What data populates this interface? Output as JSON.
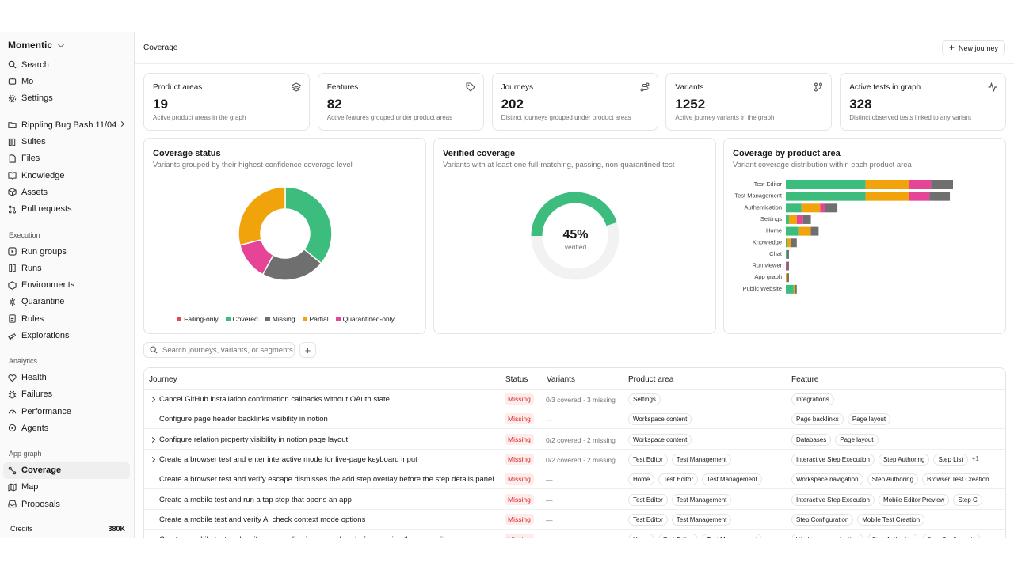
{
  "brand": "Momentic",
  "nav_top": [
    {
      "label": "Search",
      "icon": "search-icon"
    },
    {
      "label": "Mo",
      "icon": "mo-icon"
    },
    {
      "label": "Settings",
      "icon": "gear-icon"
    }
  ],
  "project": {
    "label": "Rippling Bug Bash 11/04",
    "icon": "folder-icon"
  },
  "nav_project": [
    {
      "label": "Suites",
      "icon": "suites-icon"
    },
    {
      "label": "Files",
      "icon": "file-icon"
    },
    {
      "label": "Knowledge",
      "icon": "book-icon"
    },
    {
      "label": "Assets",
      "icon": "box-icon"
    },
    {
      "label": "Pull requests",
      "icon": "pull-request-icon"
    }
  ],
  "section_execution": "Execution",
  "nav_execution": [
    {
      "label": "Run groups",
      "icon": "run-groups-icon"
    },
    {
      "label": "Runs",
      "icon": "runs-icon"
    },
    {
      "label": "Environments",
      "icon": "environment-icon"
    },
    {
      "label": "Quarantine",
      "icon": "quarantine-icon"
    },
    {
      "label": "Rules",
      "icon": "rules-icon"
    },
    {
      "label": "Explorations",
      "icon": "telescope-icon"
    }
  ],
  "section_analytics": "Analytics",
  "nav_analytics": [
    {
      "label": "Health",
      "icon": "health-icon"
    },
    {
      "label": "Failures",
      "icon": "bug-icon"
    },
    {
      "label": "Performance",
      "icon": "gauge-icon"
    },
    {
      "label": "Agents",
      "icon": "agent-icon"
    }
  ],
  "section_app_graph": "App graph",
  "nav_app_graph": [
    {
      "label": "Coverage",
      "icon": "coverage-icon",
      "active": true
    },
    {
      "label": "Map",
      "icon": "map-icon"
    },
    {
      "label": "Proposals",
      "icon": "inbox-icon"
    }
  ],
  "credits": {
    "label": "Credits",
    "value": "380K"
  },
  "header": {
    "title": "Coverage",
    "new_button": "New journey"
  },
  "stats": [
    {
      "label": "Product areas",
      "value": "19",
      "desc": "Active product areas in the graph",
      "icon": "layers-icon"
    },
    {
      "label": "Features",
      "value": "82",
      "desc": "Active features grouped under product areas",
      "icon": "tag-icon"
    },
    {
      "label": "Journeys",
      "value": "202",
      "desc": "Distinct journeys grouped under product areas",
      "icon": "route-icon"
    },
    {
      "label": "Variants",
      "value": "1252",
      "desc": "Active journey variants in the graph",
      "icon": "branch-icon"
    },
    {
      "label": "Active tests in graph",
      "value": "328",
      "desc": "Distinct observed tests linked to any variant",
      "icon": "activity-icon"
    }
  ],
  "coverage_status": {
    "title": "Coverage status",
    "subtitle": "Variants grouped by their highest-confidence coverage level"
  },
  "verified": {
    "title": "Verified coverage",
    "subtitle": "Variants with at least one full-matching, passing, non-quarantined test",
    "value": "45%",
    "label": "verified"
  },
  "by_area": {
    "title": "Coverage by product area",
    "subtitle": "Variant coverage distribution within each product area"
  },
  "colors": {
    "failing": "#e5484d",
    "covered": "#3dbd7d",
    "missing": "#6f6f6f",
    "partial": "#f0a30a",
    "quarantined": "#e64497"
  },
  "chart_data": [
    {
      "type": "pie",
      "legend": [
        "Failing-only",
        "Covered",
        "Missing",
        "Partial",
        "Quarantined-only"
      ],
      "slices": [
        {
          "name": "Covered",
          "value": 36
        },
        {
          "name": "Missing",
          "value": 22
        },
        {
          "name": "Quarantined-only",
          "value": 13
        },
        {
          "name": "Partial",
          "value": 29
        },
        {
          "name": "Failing-only",
          "value": 0
        }
      ]
    },
    {
      "type": "pie",
      "slices": [
        {
          "name": "verified",
          "value": 45
        },
        {
          "name": "unverified",
          "value": 55
        }
      ]
    },
    {
      "type": "bar",
      "orientation": "horizontal",
      "stacked": true,
      "categories": [
        "Test Editor",
        "Test Management",
        "Authentication",
        "Settings",
        "Home",
        "Knowledge",
        "Chat",
        "Run viewer",
        "App graph",
        "Public Website"
      ],
      "series": [
        {
          "name": "Covered",
          "values": [
            51,
            51,
            10,
            2,
            8,
            1,
            1,
            0,
            0,
            5
          ]
        },
        {
          "name": "Partial",
          "values": [
            28,
            28,
            12,
            5,
            8,
            2,
            0,
            0,
            1,
            1
          ]
        },
        {
          "name": "Quarantined-only",
          "values": [
            14,
            13,
            3,
            4,
            0,
            0,
            0,
            1,
            0,
            0
          ]
        },
        {
          "name": "Missing",
          "values": [
            14,
            13,
            8,
            5,
            5,
            4,
            1,
            1,
            1,
            1
          ]
        }
      ]
    }
  ],
  "search": {
    "placeholder": "Search journeys, variants, or segments"
  },
  "table": {
    "headers": [
      "Journey",
      "Status",
      "Variants",
      "Product area",
      "Feature"
    ],
    "rows": [
      {
        "journey": "Cancel GitHub installation confirmation callbacks without OAuth state",
        "expandable": true,
        "status": "Missing",
        "variants": "0/3 covered · 3 missing",
        "areas": [
          "Settings"
        ],
        "features": [
          "Integrations"
        ],
        "more": ""
      },
      {
        "journey": "Configure page header backlinks visibility in notion",
        "expandable": false,
        "status": "Missing",
        "variants": "—",
        "areas": [
          "Workspace content"
        ],
        "features": [
          "Page backlinks",
          "Page layout"
        ],
        "more": ""
      },
      {
        "journey": "Configure relation property visibility in notion page layout",
        "expandable": true,
        "status": "Missing",
        "variants": "0/2 covered · 2 missing",
        "areas": [
          "Workspace content"
        ],
        "features": [
          "Databases",
          "Page layout"
        ],
        "more": ""
      },
      {
        "journey": "Create a browser test and enter interactive mode for live-page keyboard input",
        "expandable": true,
        "status": "Missing",
        "variants": "0/2 covered · 2 missing",
        "areas": [
          "Test Editor",
          "Test Management"
        ],
        "features": [
          "Interactive Step Execution",
          "Step Authoring",
          "Step List"
        ],
        "more": "+1"
      },
      {
        "journey": "Create a browser test and verify escape dismisses the add step overlay before the step details panel",
        "expandable": false,
        "status": "Missing",
        "variants": "—",
        "areas": [
          "Home",
          "Test Editor",
          "Test Management"
        ],
        "features": [
          "Workspace navigation",
          "Step Authoring",
          "Browser Test Creation"
        ],
        "more": "+"
      },
      {
        "journey": "Create a mobile test and run a tap step that opens an app",
        "expandable": false,
        "status": "Missing",
        "variants": "—",
        "areas": [
          "Test Editor",
          "Test Management"
        ],
        "features": [
          "Interactive Step Execution",
          "Mobile Editor Preview",
          "Step C"
        ],
        "more": ""
      },
      {
        "journey": "Create a mobile test and verify AI check context mode options",
        "expandable": false,
        "status": "Missing",
        "variants": "—",
        "areas": [
          "Test Editor",
          "Test Management"
        ],
        "features": [
          "Step Configuration",
          "Mobile Test Creation"
        ],
        "more": ""
      },
      {
        "journey": "Create a mobile test and verify escape dismisses overlays before closing the step editor",
        "expandable": false,
        "status": "Missing",
        "variants": "—",
        "areas": [
          "Home",
          "Test Editor",
          "Test Management"
        ],
        "features": [
          "Workspace navigation",
          "Step Authoring",
          "Step Configuratio"
        ],
        "more": ""
      }
    ]
  }
}
